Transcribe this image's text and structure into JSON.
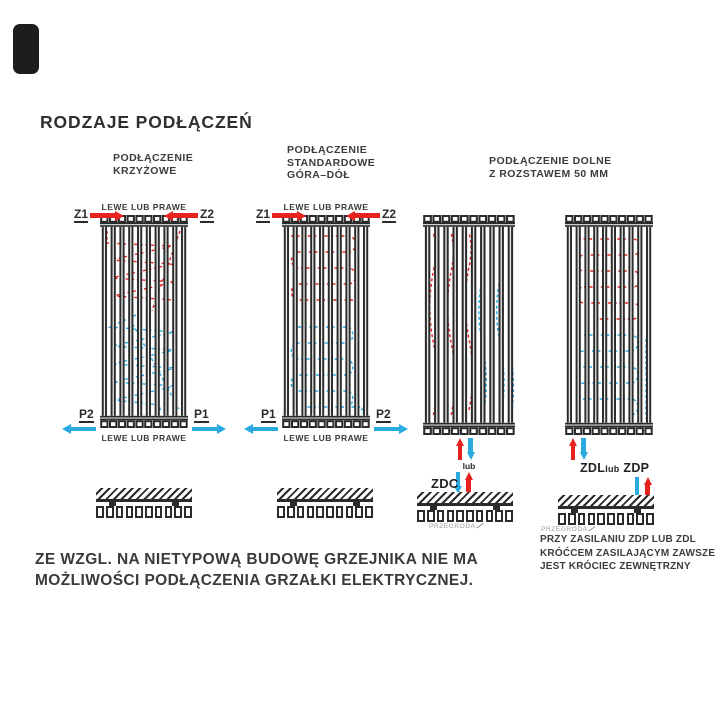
{
  "title": "RODZAJE PODŁĄCZEŃ",
  "colors": {
    "supply_red": "#e8231f",
    "return_blue": "#29abe2",
    "ink": "#2b2b2b"
  },
  "headers": {
    "krzyzowe": [
      "PODŁĄCZENIE",
      "KRZYŻOWE"
    ],
    "standardowe": [
      "PODŁĄCZENIE",
      "STANDARDOWE",
      "GÓRA–DÓŁ"
    ],
    "dolne": [
      "PODŁĄCZENIE DOLNE",
      "Z ROZSTAWEM 50 MM"
    ]
  },
  "radiator": {
    "tube_count": 10,
    "floor_squares": 10
  },
  "rad1": {
    "top_label": "LEWE LUB PRAWE",
    "bottom_label": "LEWE LUB PRAWE",
    "top_left": "Z1",
    "top_right": "Z2",
    "bottom_left": "P2",
    "bottom_right": "P1"
  },
  "rad2": {
    "top_label": "LEWE LUB PRAWE",
    "bottom_label": "LEWE LUB PRAWE",
    "top_left": "Z1",
    "top_right": "Z2",
    "bottom_left": "P1",
    "bottom_right": "P2"
  },
  "rad3": {
    "or_label": "lub",
    "connection_label": "ZDC",
    "przegroda_label": "PRZEGRODA"
  },
  "rad4": {
    "label_left": "ZDL",
    "label_mid": "lub",
    "label_right": "ZDP",
    "przegroda_label": "PRZEGRODA",
    "note": [
      "PRZY ZASILANIU ZDP LUB ZDL",
      "KRÓĆCEM ZASILAJĄCYM ZAWSZE",
      "JEST KRÓCIEC ZEWNĘTRZNY"
    ]
  },
  "footer": [
    "ZE WZGL. NA NIETYPOWĄ BUDOWĘ GRZEJNIKA NIE MA",
    "MOŻLIWOŚCI PODŁĄCZENIA GRZAŁKI ELEKTRYCZNEJ."
  ]
}
